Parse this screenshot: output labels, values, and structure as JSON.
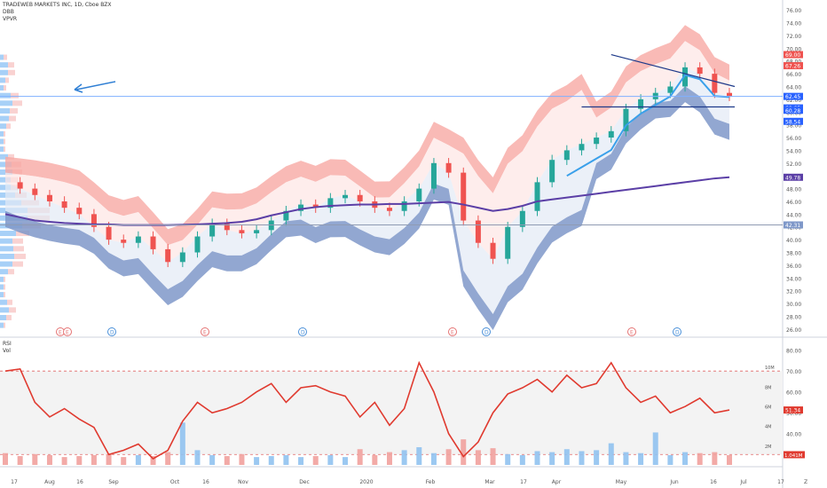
{
  "header": {
    "title": "TRADEWEB MARKETS INC, 1D, Cboe BZX",
    "ind1": "DBB",
    "ind2": "VPVR",
    "rsi_label": "RSI",
    "vol_label": "Vol"
  },
  "colors": {
    "candle_up": "#26a69a",
    "candle_down": "#ef5350",
    "upper_band": "#f8a9a4",
    "lower_band": "#7f98c9",
    "sma": "#5b3fa6",
    "rsi_line": "#e03a2f",
    "vpvr": "#5fa9f0",
    "ma_blue": "#3aa0ea"
  },
  "chart_data": [
    {
      "type": "line",
      "name": "price",
      "x_labels": [
        "17",
        "Aug",
        "16",
        "Sep",
        "Oct",
        "16",
        "Nov",
        "Dec",
        "2020",
        "Feb",
        "Mar",
        "17",
        "Apr",
        "May",
        "Jun",
        "16",
        "Jul",
        "17"
      ],
      "y_ticks": [
        "76.00",
        "74.00",
        "72.00",
        "70.00",
        "68.00",
        "66.00",
        "64.00",
        "62.00",
        "60.00",
        "58.00",
        "56.00",
        "54.00",
        "52.00",
        "50.00",
        "48.00",
        "46.00",
        "44.00",
        "42.00",
        "40.00",
        "38.00",
        "36.00",
        "34.00",
        "32.00",
        "30.00",
        "28.00",
        "26.00"
      ],
      "ylim": [
        25,
        77
      ],
      "close": [
        49,
        48,
        47,
        46,
        45,
        44,
        42,
        40,
        39.5,
        40.5,
        38.5,
        36.5,
        38,
        40.5,
        42.5,
        41.5,
        41,
        41.5,
        43,
        44.5,
        45.5,
        45,
        46.5,
        47,
        46,
        45,
        44.5,
        46,
        48,
        52,
        50.5,
        43,
        39.5,
        37,
        42,
        44.5,
        49,
        52.5,
        54,
        55,
        56,
        57,
        60.5,
        62,
        63,
        64,
        67,
        66,
        63,
        62.5
      ],
      "sma": [
        44,
        43.5,
        43,
        42.8,
        42.6,
        42.5,
        42.4,
        42.4,
        42.3,
        42.3,
        42.3,
        42.3,
        42.35,
        42.4,
        42.5,
        42.6,
        42.8,
        43.2,
        43.8,
        44.3,
        44.8,
        45.1,
        45.3,
        45.4,
        45.5,
        45.5,
        45.6,
        45.6,
        45.7,
        45.8,
        45.9,
        45.5,
        45,
        44.5,
        44.8,
        45.3,
        46,
        46.3,
        46.6,
        46.9,
        47.2,
        47.5,
        47.8,
        48.1,
        48.4,
        48.7,
        49,
        49.3,
        49.6,
        49.78
      ],
      "price_labels": [
        {
          "text": "69.00",
          "bg": "#ef5350"
        },
        {
          "text": "67.26",
          "bg": "#ef5350"
        },
        {
          "text": "62.45",
          "bg": "#2962ff"
        },
        {
          "text": "60.65",
          "bg": "#2962ff"
        },
        {
          "text": "60.28",
          "bg": "#2962ff"
        },
        {
          "text": "58.54",
          "bg": "#2962ff"
        },
        {
          "text": "49.78",
          "bg": "#5b3fa6"
        },
        {
          "text": "42.31",
          "bg": "#7f98c9"
        }
      ],
      "events": [
        {
          "t": "E",
          "type": "E"
        },
        {
          "t": "E",
          "type": "E"
        },
        {
          "t": "D",
          "type": "D"
        },
        {
          "t": "E",
          "type": "E"
        },
        {
          "t": "D",
          "type": "D"
        },
        {
          "t": "E",
          "type": "E"
        },
        {
          "t": "D",
          "type": "D"
        },
        {
          "t": "E",
          "type": "E"
        },
        {
          "t": "D",
          "type": "D"
        }
      ]
    },
    {
      "type": "line",
      "name": "RSI",
      "y_ticks": [
        "80.00",
        "70.00",
        "60.00",
        "50.00",
        "40.00",
        "30.00"
      ],
      "ylim": [
        25,
        82
      ],
      "values": [
        70,
        71,
        55,
        48,
        52,
        47,
        43,
        30,
        32,
        35,
        28,
        32,
        46,
        55,
        50,
        52,
        55,
        60,
        64,
        55,
        62,
        63,
        60,
        58,
        48,
        55,
        44,
        52,
        74,
        60,
        40,
        29,
        36,
        50,
        59,
        62,
        66,
        60,
        68,
        62,
        64,
        74,
        62,
        55,
        58,
        50,
        53,
        57,
        50,
        51.34
      ],
      "vol_ticks": [
        "10M",
        "8M",
        "6M",
        "4M",
        "2M"
      ],
      "vol_ylim": [
        0,
        11
      ],
      "volume": [
        1.2,
        0.9,
        1.1,
        1.0,
        0.8,
        0.9,
        1.0,
        1.1,
        0.8,
        1.0,
        0.9,
        1.3,
        4.3,
        1.5,
        1.0,
        0.9,
        1.1,
        0.8,
        0.9,
        1.0,
        0.8,
        0.9,
        1.0,
        0.8,
        1.6,
        1.0,
        1.3,
        1.5,
        1.8,
        1.2,
        1.6,
        2.6,
        1.5,
        1.7,
        1.1,
        1.0,
        1.4,
        1.3,
        1.6,
        1.4,
        1.5,
        2.2,
        1.3,
        1.2,
        3.3,
        1.0,
        1.3,
        1.2,
        1.3,
        1.0
      ],
      "labels": {
        "rsi_last": "51.34",
        "vol_last": "1.041M",
        "rsi_30": "30.00",
        "rsi_80": "80.00"
      }
    }
  ],
  "footer": {
    "tz": "Z"
  }
}
